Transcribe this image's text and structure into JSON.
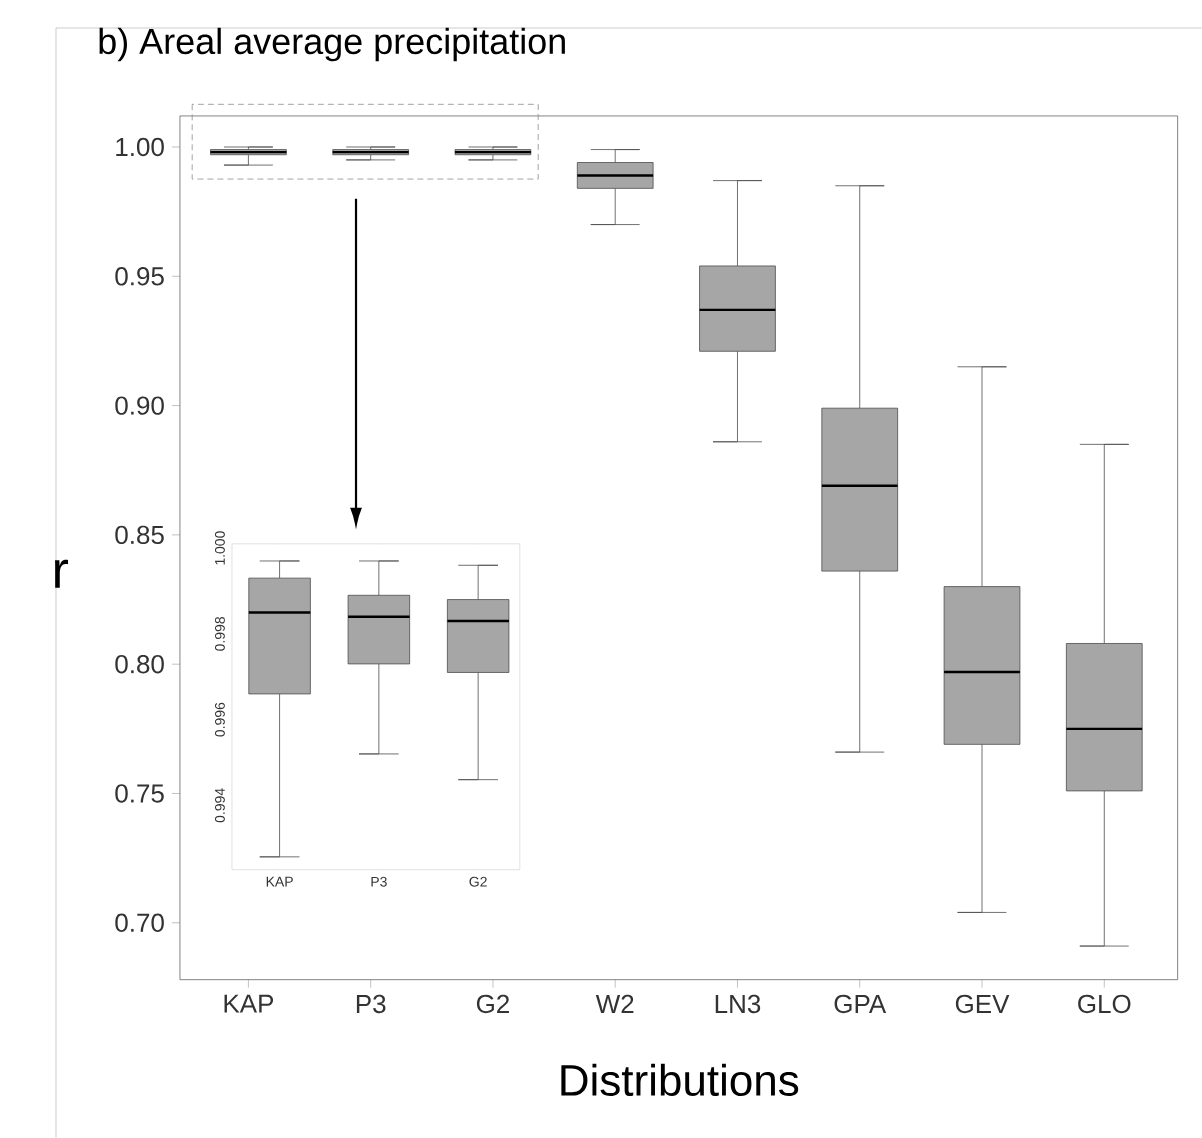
{
  "chart_data": [
    {
      "type": "box",
      "title": "b) Areal average precipitation",
      "xlabel": "Distributions",
      "ylabel": "r",
      "color": "#a6a6a6",
      "categories": [
        "KAP",
        "P3",
        "G2",
        "W2",
        "LN3",
        "GPA",
        "GEV",
        "GLO"
      ],
      "boxes": [
        {
          "low": 0.993,
          "q1": 0.997,
          "median": 0.998,
          "q3": 0.999,
          "high": 1.0
        },
        {
          "low": 0.995,
          "q1": 0.997,
          "median": 0.998,
          "q3": 0.999,
          "high": 1.0
        },
        {
          "low": 0.995,
          "q1": 0.997,
          "median": 0.998,
          "q3": 0.999,
          "high": 1.0
        },
        {
          "low": 0.97,
          "q1": 0.984,
          "median": 0.989,
          "q3": 0.994,
          "high": 0.999
        },
        {
          "low": 0.886,
          "q1": 0.921,
          "median": 0.937,
          "q3": 0.954,
          "high": 0.987
        },
        {
          "low": 0.766,
          "q1": 0.836,
          "median": 0.869,
          "q3": 0.899,
          "high": 0.985
        },
        {
          "low": 0.704,
          "q1": 0.769,
          "median": 0.797,
          "q3": 0.83,
          "high": 0.915
        },
        {
          "low": 0.691,
          "q1": 0.751,
          "median": 0.775,
          "q3": 0.808,
          "high": 0.885
        }
      ],
      "ylim": [
        0.678,
        1.012
      ],
      "yticks": [
        {
          "value": 0.7,
          "label": "0.70"
        },
        0.75,
        {
          "value": 0.8,
          "label": "0.80"
        },
        0.85,
        {
          "value": 0.9,
          "label": "0.90"
        },
        0.95,
        {
          "value": 1.0,
          "label": "1.00"
        }
      ]
    },
    {
      "type": "box",
      "color": "#a6a6a6",
      "categories": [
        "KAP",
        "P3",
        "G2"
      ],
      "boxes": [
        {
          "low": 0.9928,
          "q1": 0.9966,
          "median": 0.9985,
          "q3": 0.9993,
          "high": 0.9997
        },
        {
          "low": 0.9952,
          "q1": 0.9973,
          "median": 0.9984,
          "q3": 0.9989,
          "high": 0.9997
        },
        {
          "low": 0.9946,
          "q1": 0.9971,
          "median": 0.9983,
          "q3": 0.9988,
          "high": 0.9996
        }
      ],
      "ylim": [
        0.9925,
        1.0001
      ],
      "yticks": [
        0.994,
        0.996,
        0.998,
        {
          "value": 1.0,
          "label": "1.000"
        }
      ]
    }
  ]
}
